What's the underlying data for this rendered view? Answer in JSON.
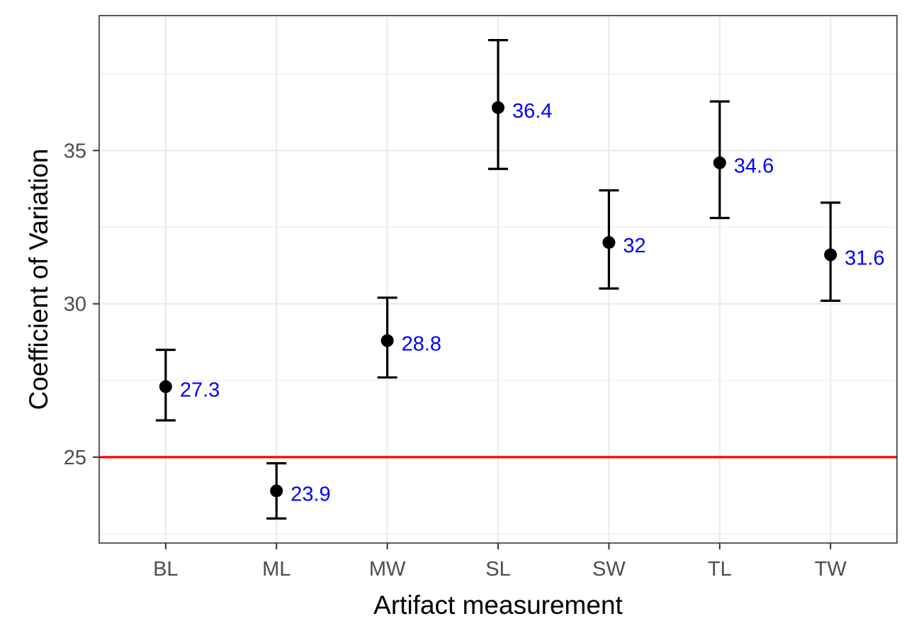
{
  "chart_data": {
    "type": "scatter",
    "title": "",
    "xlabel": "Artifact measurement",
    "ylabel": "Coefficient of Variation",
    "categories": [
      "BL",
      "ML",
      "MW",
      "SL",
      "SW",
      "TL",
      "TW"
    ],
    "values": [
      27.3,
      23.9,
      28.8,
      36.4,
      32.0,
      34.6,
      31.6
    ],
    "labels": [
      "27.3",
      "23.9",
      "28.8",
      "36.4",
      "32",
      "34.6",
      "31.6"
    ],
    "error_low": [
      26.2,
      23.0,
      27.6,
      34.4,
      30.5,
      32.8,
      30.1
    ],
    "error_high": [
      28.5,
      24.8,
      30.2,
      38.6,
      33.7,
      36.6,
      33.3
    ],
    "ylim": [
      22.2,
      39.4
    ],
    "yticks": [
      25,
      30,
      35
    ],
    "reference_line": 25,
    "grid": true,
    "legend": "none",
    "colors": {
      "points": "#000000",
      "error_bars": "#000000",
      "labels": "#0000ff",
      "reference_line": "#ff0000",
      "grid": "#ebebeb"
    }
  }
}
